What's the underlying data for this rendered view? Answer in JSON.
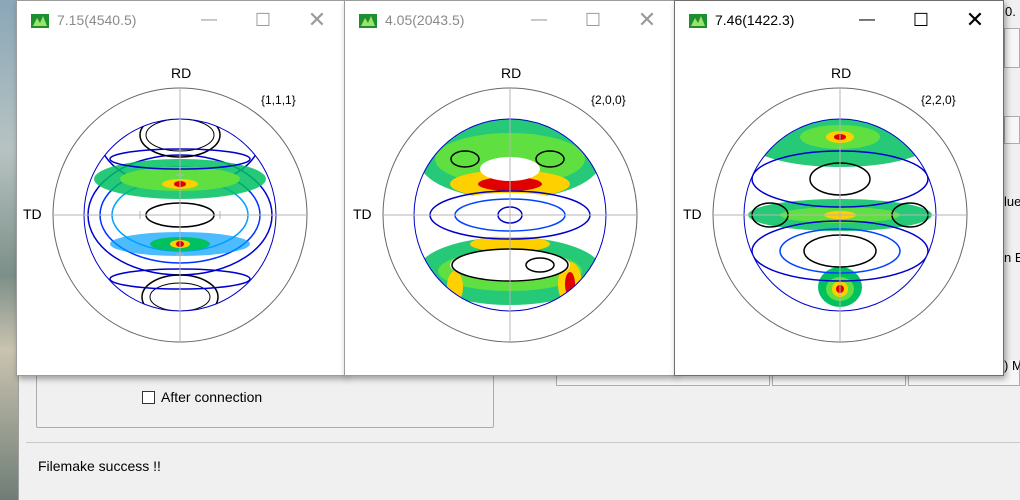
{
  "background_window": {
    "checkbox_label": "After connection",
    "status_message": "Filemake success !!",
    "partial_text_1": "0.",
    "partial_text_2": "lue",
    "partial_text_3": "n E",
    "partial_text_4": ") M"
  },
  "pole_figure_windows": [
    {
      "title": "7.15(4540.5)",
      "rd_label": "RD",
      "td_label": "TD",
      "plane": "{1,1,1}"
    },
    {
      "title": "4.05(2043.5)",
      "rd_label": "RD",
      "td_label": "TD",
      "plane": "{2,0,0}"
    },
    {
      "title": "7.46(1422.3)",
      "rd_label": "RD",
      "td_label": "TD",
      "plane": "{2,2,0}"
    }
  ],
  "colors": {
    "contour_low": "#0000cc",
    "contour_mid": "#00b050",
    "contour_high": "#ffd000",
    "contour_peak": "#e00000",
    "contour_zero": "#000000",
    "axis_grey": "#b4b4b4"
  },
  "icons": {
    "app": "pole-figure-app-icon",
    "minimize": "minimize-icon",
    "maximize": "maximize-icon",
    "close": "close-icon"
  }
}
